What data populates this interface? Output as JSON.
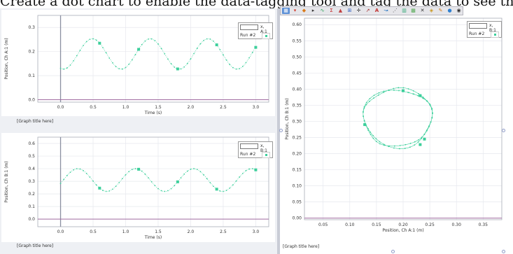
{
  "banner_text": "Create a dot chart to enable the data-tagging tool and tag the data to see the sections.",
  "toolbar": {
    "icons": [
      "table-icon",
      "graph-icon",
      "style-icon",
      "arrow-icon",
      "fit-icon",
      "sigma-icon",
      "annotation-icon",
      "zoom-icon",
      "crosshair-icon",
      "tangent-icon",
      "text-icon",
      "delete-icon",
      "slope-icon",
      "coord-icon",
      "integral-icon",
      "stats-icon",
      "close-icon",
      "tag-icon",
      "pencil-icon",
      "color-icon",
      "eye-icon"
    ]
  },
  "graphs": [
    {
      "title_label": "[Graph title here]",
      "y_label": "Position, Ch A:1 (m)",
      "x_label": "Time (s)",
      "legend": {
        "field_label": "x, A:1",
        "run_label": "Run #2"
      },
      "x_ticks": [
        "0.0",
        "0.5",
        "1.0",
        "1.5",
        "2.0",
        "2.5",
        "3.0"
      ],
      "y_ticks": [
        "0.0",
        "0.1",
        "0.2",
        "0.3"
      ]
    },
    {
      "title_label": "[Graph title here]",
      "y_label": "Position, Ch B:1 (m)",
      "x_label": "Time (s)",
      "legend": {
        "field_label": "x, B:1",
        "run_label": "Run #2"
      },
      "x_ticks": [
        "0.0",
        "0.5",
        "1.0",
        "1.5",
        "2.0",
        "2.5",
        "3.0"
      ],
      "y_ticks": [
        "0.0",
        "0.1",
        "0.2",
        "0.3",
        "0.4",
        "0.5",
        "0.6"
      ]
    },
    {
      "title_label": "[Graph title here]",
      "y_label": "Position, Ch B:1 (m)",
      "x_label": "Position, Ch A:1 (m)",
      "legend": {
        "field_label": "x, B:1",
        "run_label": "Run #2"
      },
      "x_ticks": [
        "0.05",
        "0.10",
        "0.15",
        "0.20",
        "0.25",
        "0.30",
        "0.35"
      ],
      "y_ticks": [
        "0.00",
        "0.05",
        "0.10",
        "0.15",
        "0.20",
        "0.25",
        "0.30",
        "0.35",
        "0.40",
        "0.45",
        "0.50",
        "0.55",
        "0.60"
      ]
    }
  ],
  "chart_data": [
    {
      "type": "line",
      "series": [
        {
          "name": "Run #2",
          "model": "0.19 + 0.063*sin(2*pi*t/0.89 - 1.88)",
          "t_range": [
            0,
            3
          ]
        }
      ],
      "xlim": [
        -0.35,
        3.2
      ],
      "ylim": [
        -0.01,
        0.35
      ],
      "marker_color": "#3ccf9b"
    },
    {
      "type": "line",
      "series": [
        {
          "name": "Run #2",
          "model": "0.31 + 0.09*sin(2*pi*t/0.89 - 0.3)",
          "t_range": [
            0,
            3
          ]
        }
      ],
      "xlim": [
        -0.35,
        3.2
      ],
      "ylim": [
        -0.06,
        0.65
      ],
      "marker_color": "#3ccf9b"
    },
    {
      "type": "scatter",
      "series": [
        {
          "name": "Run #2",
          "shape": "closed loop",
          "center": [
            0.19,
            0.31
          ],
          "radius_x": 0.064,
          "radius_y": 0.09
        }
      ],
      "xlim": [
        0.015,
        0.385
      ],
      "ylim": [
        -0.005,
        0.62
      ],
      "marker_color": "#3ccf9b"
    }
  ]
}
